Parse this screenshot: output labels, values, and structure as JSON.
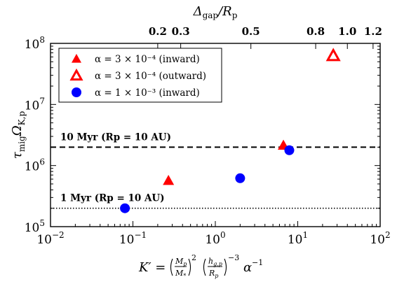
{
  "chart_data": {
    "type": "scatter",
    "xscale": "log",
    "yscale": "log",
    "xlim": [
      0.01,
      100
    ],
    "ylim": [
      100000,
      100000000
    ],
    "grid": false,
    "legend_position": "upper-left",
    "xlabel": "K′ = (Mp/M*)² (hg,p/Rp)⁻³ α⁻¹",
    "ylabel": "τmig ΩK,p",
    "top_xlabel": "Δgap/Rp",
    "x_tick_labels": [
      {
        "value": 0.01,
        "base": "10",
        "exp": "−2"
      },
      {
        "value": 0.1,
        "base": "10",
        "exp": "−1"
      },
      {
        "value": 1,
        "base": "10",
        "exp": "0"
      },
      {
        "value": 10,
        "base": "10",
        "exp": "1"
      },
      {
        "value": 100,
        "base": "10",
        "exp": "2"
      }
    ],
    "y_tick_labels": [
      {
        "value": 100000,
        "base": "10",
        "exp": "5"
      },
      {
        "value": 1000000,
        "base": "10",
        "exp": "6"
      },
      {
        "value": 10000000,
        "base": "10",
        "exp": "7"
      },
      {
        "value": 100000000,
        "base": "10",
        "exp": "8"
      }
    ],
    "top_ticks": [
      {
        "label": "0.2",
        "k": 0.2
      },
      {
        "label": "0.3",
        "k": 0.38
      },
      {
        "label": "0.5",
        "k": 2.7
      },
      {
        "label": "0.8",
        "k": 16.5
      },
      {
        "label": "1.0",
        "k": 40
      },
      {
        "label": "1.2",
        "k": 82
      }
    ],
    "hlines": [
      {
        "y": 2000000,
        "style": "dashed",
        "label": "10 Myr (Rp = 10 AU)"
      },
      {
        "y": 200000,
        "style": "dotted",
        "label": "1 Myr (Rp = 10 AU)"
      }
    ],
    "series": [
      {
        "name": "α = 3 × 10⁻⁴ (inward)",
        "marker": "triangle-filled",
        "color": "#ff0000",
        "points": [
          {
            "x": 0.27,
            "y": 570000
          },
          {
            "x": 6.7,
            "y": 2150000
          }
        ]
      },
      {
        "name": "α = 3 × 10⁻⁴ (outward)",
        "marker": "triangle-open",
        "color": "#ff0000",
        "points": [
          {
            "x": 27,
            "y": 63000000
          }
        ]
      },
      {
        "name": "α = 1 × 10⁻³ (inward)",
        "marker": "circle",
        "color": "#0000ff",
        "points": [
          {
            "x": 0.08,
            "y": 200000
          },
          {
            "x": 2.0,
            "y": 620000
          },
          {
            "x": 7.9,
            "y": 1780000
          }
        ]
      }
    ]
  }
}
